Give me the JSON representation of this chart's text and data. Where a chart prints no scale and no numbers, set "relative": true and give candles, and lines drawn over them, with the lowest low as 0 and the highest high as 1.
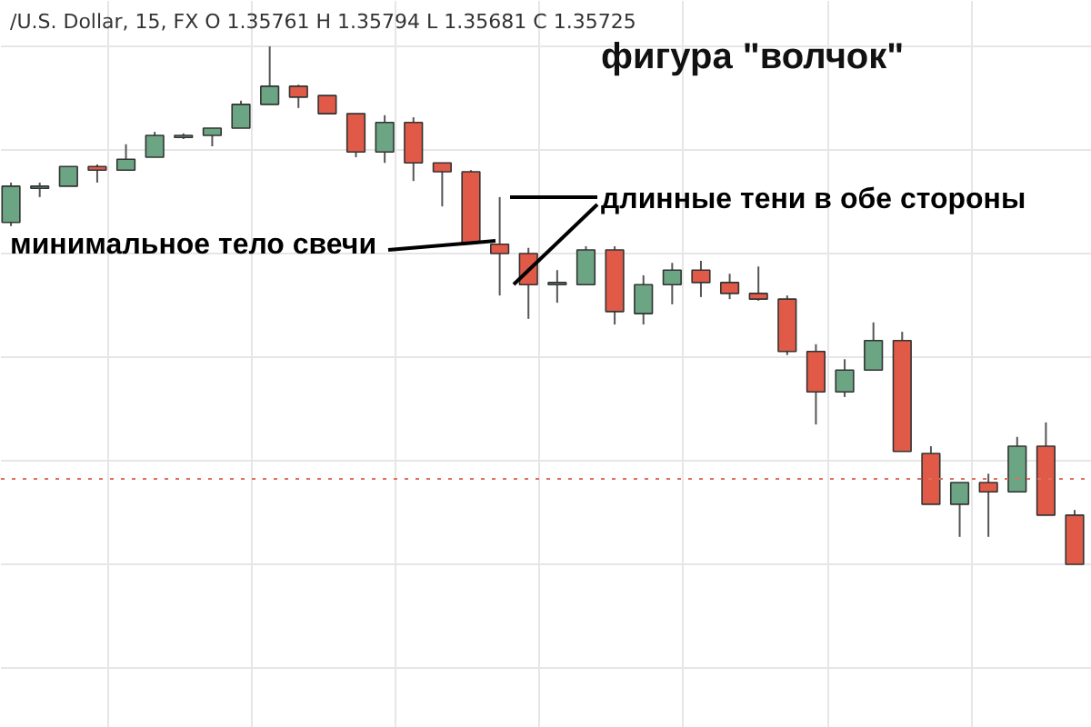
{
  "chart_data": {
    "type": "candlestick",
    "title": "фигура \"волчок\"",
    "subtitle": "/U.S. Dollar, 15, FX  O 1.35761 H 1.35794 L 1.35681 C 1.35725",
    "relative": true,
    "grid": true,
    "categories": [
      null,
      null,
      null,
      null,
      null,
      null,
      null,
      null,
      null,
      null,
      null,
      null,
      null,
      null,
      null,
      null,
      null,
      null,
      null,
      null,
      null,
      null,
      null,
      null,
      null,
      null,
      null,
      null,
      null,
      null,
      null,
      null,
      null,
      null,
      null,
      null,
      null,
      null
    ],
    "annotations": [
      "минимальное тело свечи",
      "длинные тени в обе стороны"
    ],
    "ref_lines": [
      {
        "axis": "y",
        "value": 0.165,
        "color": "#e07060",
        "line_style": "dotted"
      }
    ],
    "colors": [
      "#6ba583",
      "#6ba583",
      "#6ba583",
      "#e05a47",
      "#6ba583",
      "#6ba583",
      "#6ba583",
      "#6ba583",
      "#6ba583",
      "#6ba583",
      "#e05a47",
      "#e05a47",
      "#e05a47",
      "#6ba583",
      "#e05a47",
      "#e05a47",
      "#e05a47",
      "#e05a47",
      "#e05a47",
      "#6ba583",
      "#6ba583",
      "#e05a47",
      "#6ba583",
      "#6ba583",
      "#e05a47",
      "#e05a47",
      "#e05a47",
      "#e05a47",
      "#e05a47",
      "#6ba583",
      "#6ba583",
      "#e05a47",
      "#e05a47",
      "#6ba583",
      "#e05a47",
      "#6ba583",
      "#e05a47",
      "#e05a47"
    ],
    "ohlc": [
      [
        0.66,
        0.737,
        0.653,
        0.73
      ],
      [
        0.73,
        0.737,
        0.709,
        0.73
      ],
      [
        0.73,
        0.768,
        0.73,
        0.768
      ],
      [
        0.768,
        0.772,
        0.737,
        0.761
      ],
      [
        0.761,
        0.811,
        0.761,
        0.782
      ],
      [
        0.786,
        0.835,
        0.786,
        0.828
      ],
      [
        0.825,
        0.832,
        0.821,
        0.828
      ],
      [
        0.828,
        0.842,
        0.807,
        0.842
      ],
      [
        0.842,
        0.895,
        0.842,
        0.888
      ],
      [
        0.888,
        1.0,
        0.888,
        0.923
      ],
      [
        0.923,
        0.926,
        0.881,
        0.902
      ],
      [
        0.905,
        0.905,
        0.87,
        0.87
      ],
      [
        0.87,
        0.87,
        0.786,
        0.796
      ],
      [
        0.796,
        0.867,
        0.775,
        0.853
      ],
      [
        0.853,
        0.863,
        0.74,
        0.775
      ],
      [
        0.775,
        0.775,
        0.691,
        0.758
      ],
      [
        0.758,
        0.761,
        0.621,
        0.621
      ],
      [
        0.618,
        0.709,
        0.519,
        0.6
      ],
      [
        0.6,
        0.611,
        0.474,
        0.54
      ],
      [
        0.544,
        0.568,
        0.505,
        0.544
      ],
      [
        0.54,
        0.614,
        0.54,
        0.607
      ],
      [
        0.607,
        0.614,
        0.463,
        0.488
      ],
      [
        0.484,
        0.558,
        0.463,
        0.54
      ],
      [
        0.54,
        0.582,
        0.502,
        0.568
      ],
      [
        0.568,
        0.586,
        0.516,
        0.544
      ],
      [
        0.544,
        0.561,
        0.512,
        0.523
      ],
      [
        0.523,
        0.575,
        0.509,
        0.512
      ],
      [
        0.512,
        0.519,
        0.404,
        0.411
      ],
      [
        0.411,
        0.425,
        0.27,
        0.333
      ],
      [
        0.333,
        0.396,
        0.323,
        0.375
      ],
      [
        0.375,
        0.467,
        0.375,
        0.432
      ],
      [
        0.432,
        0.449,
        0.218,
        0.218
      ],
      [
        0.214,
        0.228,
        0.116,
        0.116
      ],
      [
        0.116,
        0.158,
        0.053,
        0.158
      ],
      [
        0.158,
        0.175,
        0.053,
        0.14
      ],
      [
        0.14,
        0.246,
        0.14,
        0.228
      ],
      [
        0.228,
        0.274,
        0.095,
        0.095
      ],
      [
        0.095,
        0.105,
        0.0,
        0.0
      ]
    ]
  }
}
